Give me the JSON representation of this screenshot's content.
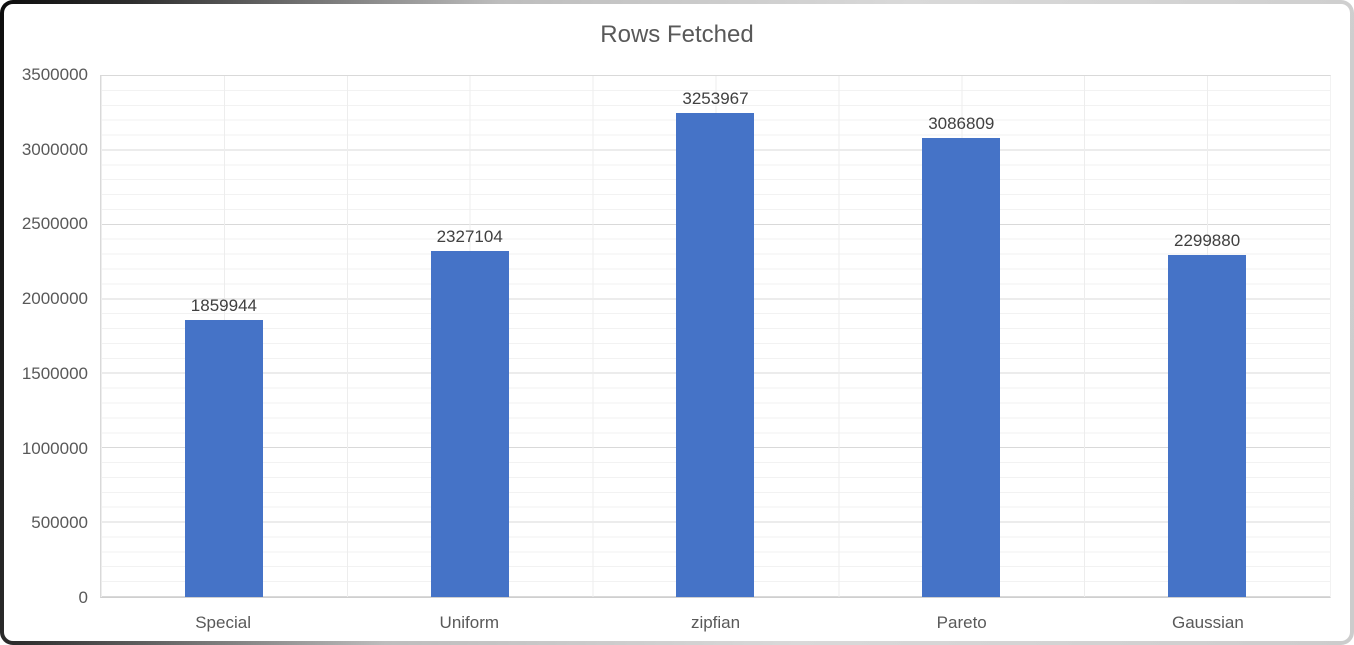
{
  "chart_data": {
    "type": "bar",
    "title": "Rows Fetched",
    "categories": [
      "Special",
      "Uniform",
      "zipfian",
      "Pareto",
      "Gaussian"
    ],
    "values": [
      1859944,
      2327104,
      3253967,
      3086809,
      2299880
    ],
    "value_labels": [
      "1859944",
      "2327104",
      "3253967",
      "3086809",
      "2299880"
    ],
    "series": [
      {
        "name": "Rows Fetched",
        "values": [
          1859944,
          2327104,
          3253967,
          3086809,
          2299880
        ]
      }
    ],
    "xlabel": "",
    "ylabel": "",
    "ylim": [
      0,
      3500000
    ],
    "ytick_step_major": 500000,
    "ytick_step_minor": 100000,
    "yticks": [
      "3500000",
      "3000000",
      "2500000",
      "2000000",
      "1500000",
      "1000000",
      "500000",
      "0"
    ],
    "legend_position": "none",
    "grid": "major-and-minor",
    "data_labels_shown": true,
    "colors": {
      "bar": "#4573C7",
      "title_text": "#595959",
      "axis_text": "#595959",
      "data_label_text": "#404040",
      "gridline_major": "#d9d9d9",
      "gridline_minor": "#f2f2f2"
    }
  }
}
